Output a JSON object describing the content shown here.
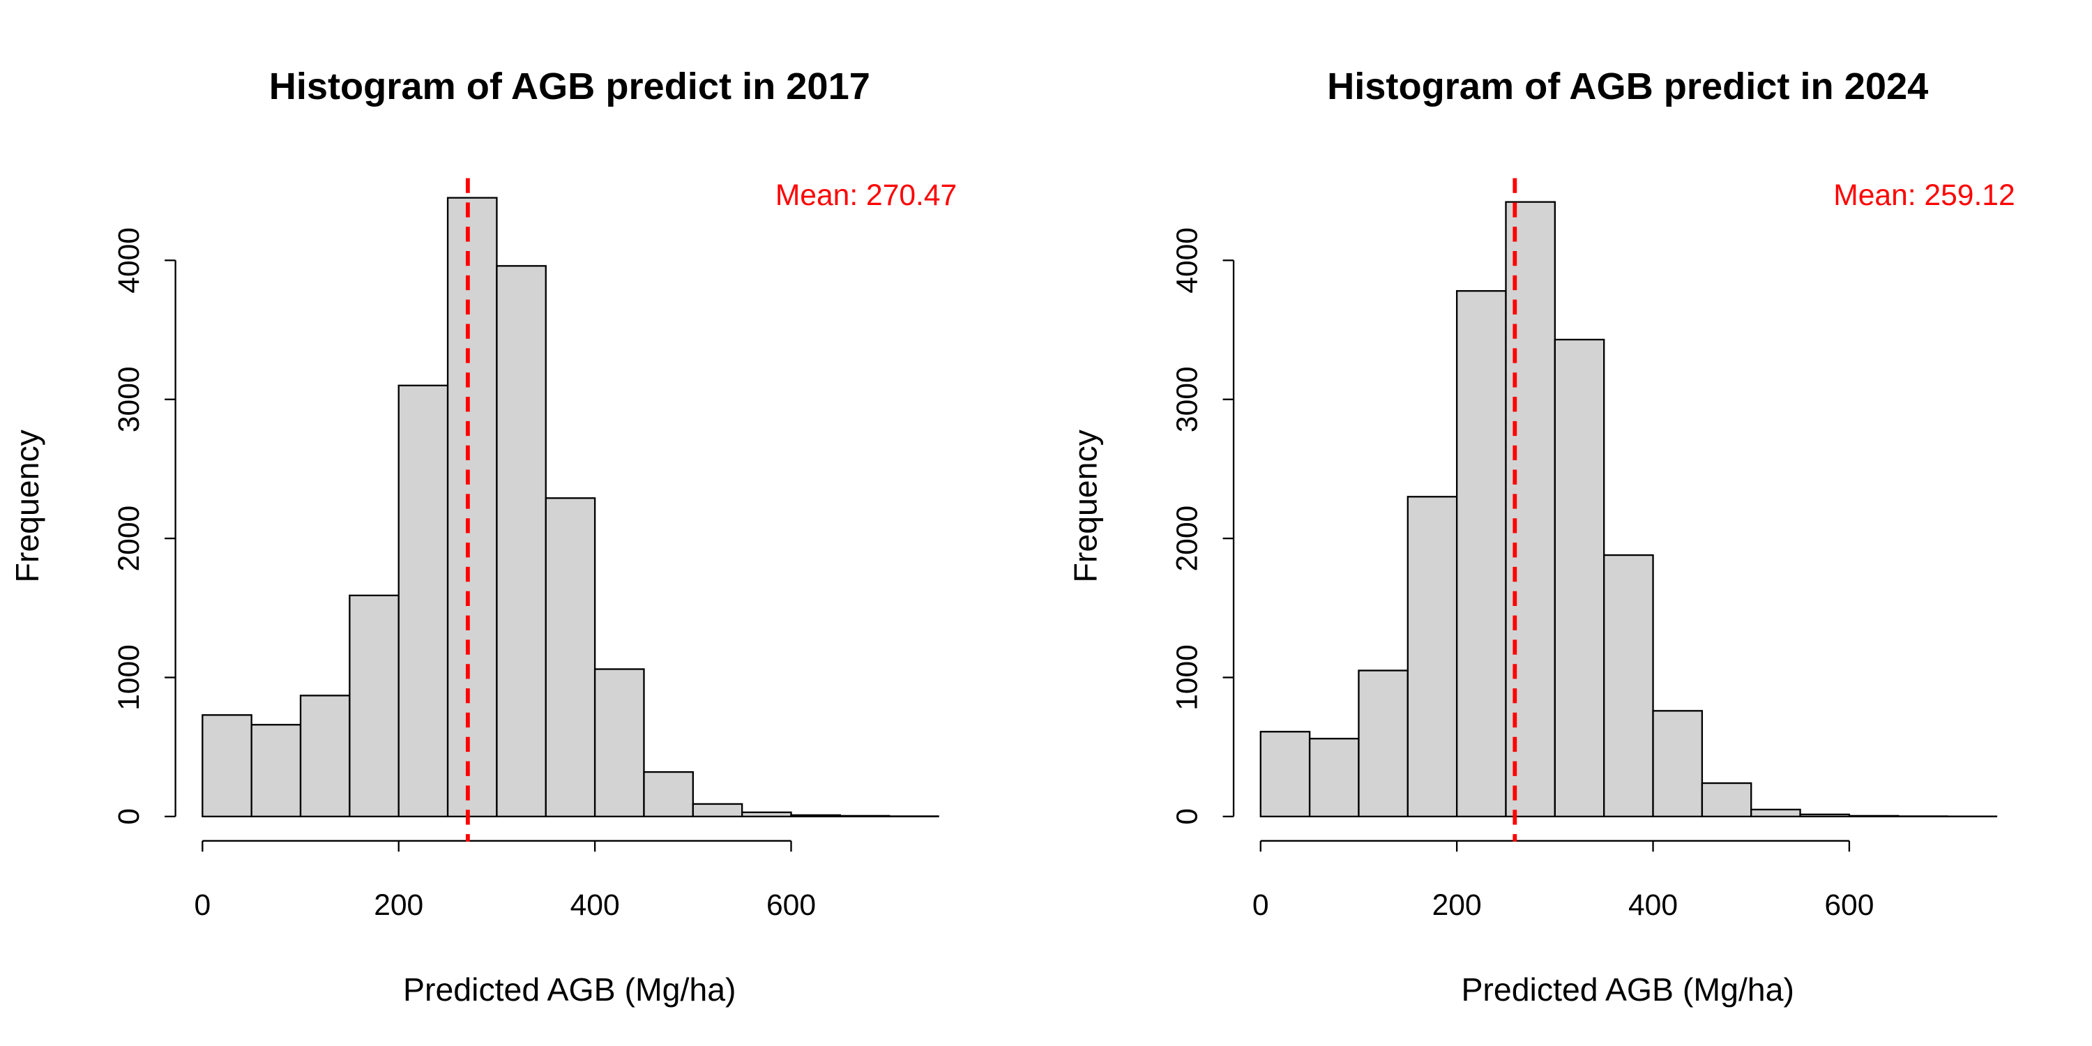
{
  "chart_data": [
    {
      "type": "histogram",
      "title": "Histogram of AGB predict in 2017",
      "xlabel": "Predicted AGB (Mg/ha)",
      "ylabel": "Frequency",
      "bins": [
        0,
        50,
        100,
        150,
        200,
        250,
        300,
        350,
        400,
        450,
        500,
        550,
        600,
        650,
        700,
        750
      ],
      "values": [
        730,
        660,
        870,
        1590,
        3100,
        4450,
        3960,
        2290,
        1060,
        320,
        90,
        30,
        10,
        5,
        2
      ],
      "color": "#d3d3d3",
      "xlim": [
        -30,
        780
      ],
      "ylim": [
        -180,
        4630
      ],
      "xticks": [
        0,
        200,
        400,
        600
      ],
      "yticks": [
        0,
        1000,
        2000,
        3000,
        4000
      ],
      "mean": 270.47,
      "mean_label": "Mean: 270.47",
      "mean_color": "#ff0000"
    },
    {
      "type": "histogram",
      "title": "Histogram of AGB predict in 2024",
      "xlabel": "Predicted AGB (Mg/ha)",
      "ylabel": "Frequency",
      "bins": [
        0,
        50,
        100,
        150,
        200,
        250,
        300,
        350,
        400,
        450,
        500,
        550,
        600,
        650,
        700,
        750
      ],
      "values": [
        610,
        560,
        1050,
        2300,
        3780,
        4420,
        3430,
        1880,
        760,
        240,
        50,
        15,
        5,
        2,
        1
      ],
      "color": "#d3d3d3",
      "xlim": [
        -30,
        780
      ],
      "ylim": [
        -180,
        4630
      ],
      "xticks": [
        0,
        200,
        400,
        600
      ],
      "yticks": [
        0,
        1000,
        2000,
        3000,
        4000
      ],
      "mean": 259.12,
      "mean_label": "Mean: 259.12",
      "mean_color": "#ff0000"
    }
  ]
}
